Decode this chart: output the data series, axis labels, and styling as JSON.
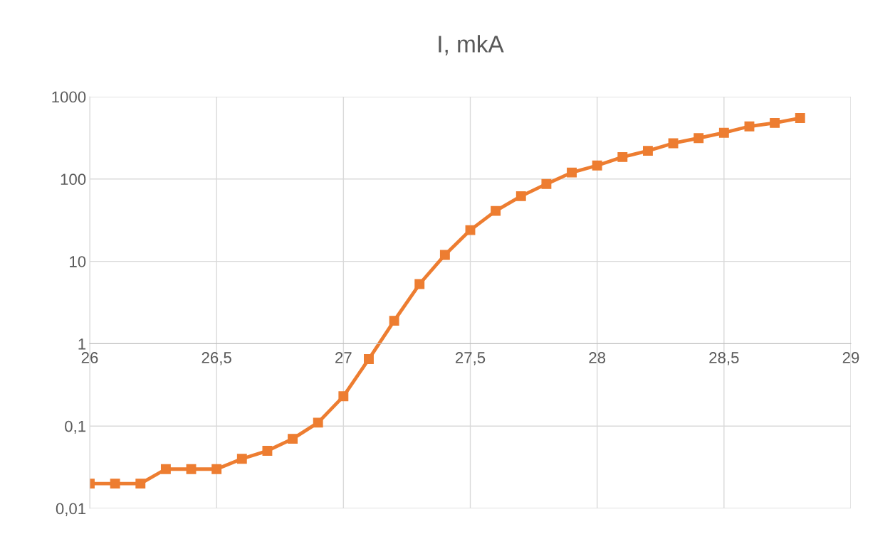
{
  "chart_data": {
    "type": "line",
    "title": "I, mkA",
    "x": [
      26.0,
      26.1,
      26.2,
      26.3,
      26.4,
      26.5,
      26.6,
      26.7,
      26.8,
      26.9,
      27.0,
      27.1,
      27.2,
      27.3,
      27.4,
      27.5,
      27.6,
      27.7,
      27.8,
      27.9,
      28.0,
      28.1,
      28.2,
      28.3,
      28.4,
      28.5,
      28.6,
      28.7,
      28.8
    ],
    "series": [
      {
        "color": "#ed7d31",
        "values": [
          0.02,
          0.02,
          0.02,
          0.03,
          0.03,
          0.03,
          0.04,
          0.05,
          0.07,
          0.11,
          0.23,
          0.65,
          1.9,
          5.3,
          12,
          24,
          41,
          62,
          87,
          120,
          146,
          185,
          220,
          272,
          314,
          365,
          436,
          480,
          550
        ]
      }
    ],
    "log": "y",
    "xlim": [
      26,
      29
    ],
    "ylim": [
      0.01,
      1000
    ],
    "xticks": [
      26,
      {
        "value": 26.5,
        "label": "26,5"
      },
      27,
      {
        "value": 27.5,
        "label": "27,5"
      },
      28,
      {
        "value": 28.5,
        "label": "28,5"
      },
      29
    ],
    "yticks": [
      {
        "value": 0.01,
        "label": "0,01"
      },
      {
        "value": 0.1,
        "label": "0,1"
      },
      1,
      10,
      100,
      1000
    ],
    "grid": true,
    "marker": "square",
    "line_style": "solid"
  }
}
